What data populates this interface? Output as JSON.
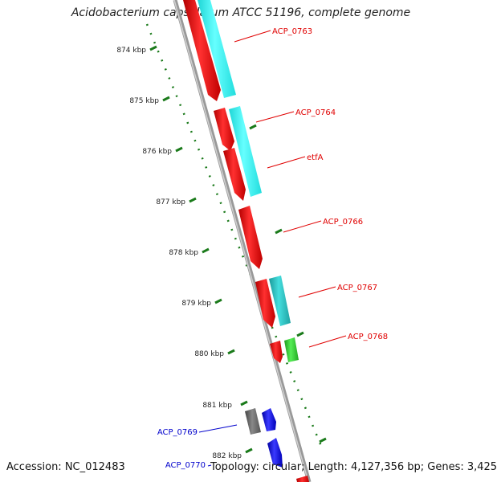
{
  "title": "Acidobacterium capsulatum ATCC 51196, complete genome",
  "footer": {
    "accession": "Accession: NC_012483",
    "summary": "Topology: circular; Length: 4,127,356 bp; Genes: 3,425"
  },
  "colors": {
    "backbone": "#8a8a8a",
    "ticks": "#1a7a1a",
    "tick_label": "#222222",
    "red_gene": "#ff1a1a",
    "cyan_feature": "#33ffff",
    "teal_feature": "#33cccc",
    "green_feature": "#33cc33",
    "gray_gene": "#666666",
    "blue_gene": "#1a1aff",
    "label_red": "#e00000",
    "label_blue": "#0000cc"
  },
  "ticks": [
    "874 kbp",
    "875 kbp",
    "876 kbp",
    "877 kbp",
    "878 kbp",
    "879 kbp",
    "880 kbp",
    "881 kbp",
    "882 kbp"
  ],
  "features": [
    {
      "name": "red-gene",
      "color": "red_gene"
    },
    {
      "name": "cyan-feature",
      "color": "cyan_feature"
    },
    {
      "name": "red-gene",
      "color": "red_gene"
    },
    {
      "name": "red-gene",
      "color": "red_gene"
    },
    {
      "name": "cyan-feature",
      "color": "cyan_feature"
    },
    {
      "name": "red-gene",
      "color": "red_gene"
    },
    {
      "name": "red-gene",
      "color": "red_gene"
    },
    {
      "name": "teal-feature",
      "color": "teal_feature"
    },
    {
      "name": "red-gene",
      "color": "red_gene"
    },
    {
      "name": "green-feature",
      "color": "green_feature"
    },
    {
      "name": "gray-gene",
      "color": "gray_gene"
    },
    {
      "name": "blue-gene",
      "color": "blue_gene"
    },
    {
      "name": "blue-gene",
      "color": "blue_gene"
    },
    {
      "name": "red-gene",
      "color": "red_gene"
    }
  ],
  "gene_labels": [
    {
      "text": "ACP_0763",
      "color": "label_red"
    },
    {
      "text": "ACP_0764",
      "color": "label_red"
    },
    {
      "text": "etfA",
      "color": "label_red"
    },
    {
      "text": "ACP_0766",
      "color": "label_red"
    },
    {
      "text": "ACP_0767",
      "color": "label_red"
    },
    {
      "text": "ACP_0768",
      "color": "label_red"
    },
    {
      "text": "ACP_0769",
      "color": "label_blue"
    },
    {
      "text": "ACP_0770",
      "color": "label_blue"
    }
  ]
}
